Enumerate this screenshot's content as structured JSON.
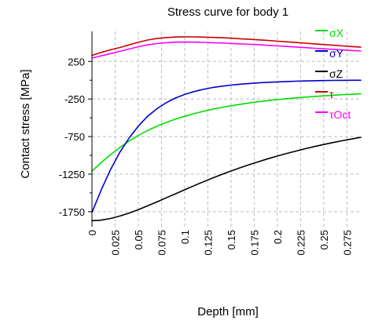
{
  "chart_data": {
    "type": "line",
    "title": "Stress curve for body 1",
    "xlabel": "Depth [mm]",
    "ylabel": "Contact stress [MPa]",
    "xlim": [
      0,
      0.29
    ],
    "ylim": [
      -1950,
      650
    ],
    "xticks": [
      "0",
      "0.025",
      "0.05",
      "0.075",
      "0.1",
      "0.125",
      "0.15",
      "0.175",
      "0.2",
      "0.225",
      "0.25",
      "0.275"
    ],
    "xtick_values": [
      0,
      0.025,
      0.05,
      0.075,
      0.1,
      0.125,
      0.15,
      0.175,
      0.2,
      0.225,
      0.25,
      0.275
    ],
    "yticks": [
      "250",
      "-250",
      "-750",
      "-1250",
      "-1750"
    ],
    "ytick_values": [
      250,
      -250,
      -750,
      -1250,
      -1750
    ],
    "grid": true,
    "legend_position": "top-right",
    "series": [
      {
        "name": "σX",
        "color": "#00dd00",
        "x": [
          0,
          0.01,
          0.02,
          0.03,
          0.04,
          0.05,
          0.06,
          0.07,
          0.08,
          0.09,
          0.1,
          0.11,
          0.12,
          0.13,
          0.14,
          0.15,
          0.16,
          0.17,
          0.18,
          0.19,
          0.2,
          0.21,
          0.22,
          0.23,
          0.24,
          0.25,
          0.26,
          0.27,
          0.28,
          0.29
        ],
        "values": [
          -1210,
          -1095,
          -990,
          -895,
          -810,
          -735,
          -670,
          -612,
          -562,
          -518,
          -480,
          -445,
          -414,
          -386,
          -362,
          -340,
          -320,
          -302,
          -286,
          -271,
          -258,
          -246,
          -235,
          -225,
          -216,
          -208,
          -200,
          -193,
          -187,
          -181
        ]
      },
      {
        "name": "σY",
        "color": "#0000cc",
        "x": [
          0,
          0.01,
          0.02,
          0.03,
          0.04,
          0.05,
          0.06,
          0.07,
          0.08,
          0.09,
          0.1,
          0.11,
          0.12,
          0.13,
          0.14,
          0.15,
          0.16,
          0.17,
          0.18,
          0.19,
          0.2,
          0.21,
          0.22,
          0.23,
          0.24,
          0.25,
          0.26,
          0.27,
          0.28,
          0.29
        ],
        "values": [
          -1760,
          -1460,
          -1190,
          -960,
          -770,
          -610,
          -480,
          -380,
          -300,
          -238,
          -190,
          -152,
          -122,
          -98,
          -80,
          -65,
          -53,
          -43,
          -35,
          -28,
          -22,
          -17,
          -13,
          -10,
          -7,
          -5,
          -3,
          -2,
          -1,
          0
        ]
      },
      {
        "name": "σZ",
        "color": "#000000",
        "x": [
          0,
          0.01,
          0.02,
          0.03,
          0.04,
          0.05,
          0.06,
          0.07,
          0.08,
          0.09,
          0.1,
          0.11,
          0.12,
          0.13,
          0.14,
          0.15,
          0.16,
          0.17,
          0.18,
          0.19,
          0.2,
          0.21,
          0.22,
          0.23,
          0.24,
          0.25,
          0.26,
          0.27,
          0.28,
          0.29
        ],
        "values": [
          -1870,
          -1862,
          -1840,
          -1808,
          -1768,
          -1722,
          -1672,
          -1620,
          -1566,
          -1512,
          -1458,
          -1405,
          -1353,
          -1303,
          -1255,
          -1209,
          -1165,
          -1123,
          -1083,
          -1045,
          -1009,
          -975,
          -943,
          -912,
          -883,
          -856,
          -830,
          -806,
          -783,
          -761
        ]
      },
      {
        "name": "τ",
        "color": "#cc0000",
        "x": [
          0,
          0.01,
          0.02,
          0.03,
          0.04,
          0.05,
          0.06,
          0.07,
          0.08,
          0.09,
          0.1,
          0.11,
          0.12,
          0.13,
          0.14,
          0.15,
          0.16,
          0.17,
          0.18,
          0.19,
          0.2,
          0.21,
          0.22,
          0.23,
          0.24,
          0.25,
          0.26,
          0.27,
          0.28,
          0.29
        ],
        "values": [
          330,
          370,
          405,
          435,
          470,
          505,
          535,
          555,
          568,
          575,
          578,
          577,
          574,
          570,
          565,
          559,
          552,
          545,
          537,
          529,
          520,
          511,
          502,
          493,
          484,
          475,
          466,
          457,
          448,
          440
        ]
      },
      {
        "name": "τOct",
        "color": "#ff00ff",
        "x": [
          0,
          0.01,
          0.02,
          0.03,
          0.04,
          0.05,
          0.06,
          0.07,
          0.08,
          0.09,
          0.1,
          0.11,
          0.12,
          0.13,
          0.14,
          0.15,
          0.16,
          0.17,
          0.18,
          0.19,
          0.2,
          0.21,
          0.22,
          0.23,
          0.24,
          0.25,
          0.26,
          0.27,
          0.28,
          0.29
        ],
        "values": [
          295,
          325,
          355,
          385,
          415,
          445,
          470,
          488,
          500,
          506,
          508,
          507,
          504,
          500,
          495,
          490,
          484,
          478,
          471,
          464,
          457,
          450,
          442,
          434,
          426,
          418,
          411,
          403,
          396,
          389
        ]
      }
    ]
  }
}
